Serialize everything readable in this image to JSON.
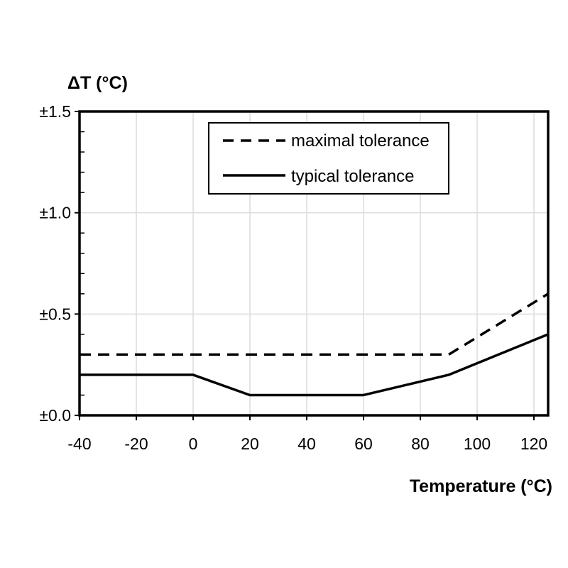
{
  "chart_data": {
    "type": "line",
    "title": "",
    "ylabel": "ΔT (°C)",
    "xlabel": "Temperature (°C)",
    "xlim": [
      -40,
      125
    ],
    "ylim": [
      0,
      1.5
    ],
    "x_ticks": [
      -40,
      -20,
      0,
      20,
      40,
      60,
      80,
      100,
      120
    ],
    "x_tick_labels": [
      "-40",
      "-20",
      "0",
      "20",
      "40",
      "60",
      "80",
      "100",
      "120"
    ],
    "y_ticks": [
      0,
      0.5,
      1.0,
      1.5
    ],
    "y_tick_labels": [
      "±0.0",
      "±0.5",
      "±1.0",
      "±1.5"
    ],
    "grid": true,
    "legend_position": "top-right",
    "series": [
      {
        "name": "maximal tolerance",
        "style": "dashed",
        "color": "#000000",
        "x": [
          -40,
          90,
          125
        ],
        "y": [
          0.3,
          0.3,
          0.6
        ]
      },
      {
        "name": "typical tolerance",
        "style": "solid",
        "color": "#000000",
        "x": [
          -40,
          0,
          20,
          60,
          90,
          125
        ],
        "y": [
          0.2,
          0.2,
          0.1,
          0.1,
          0.2,
          0.4
        ]
      }
    ]
  }
}
